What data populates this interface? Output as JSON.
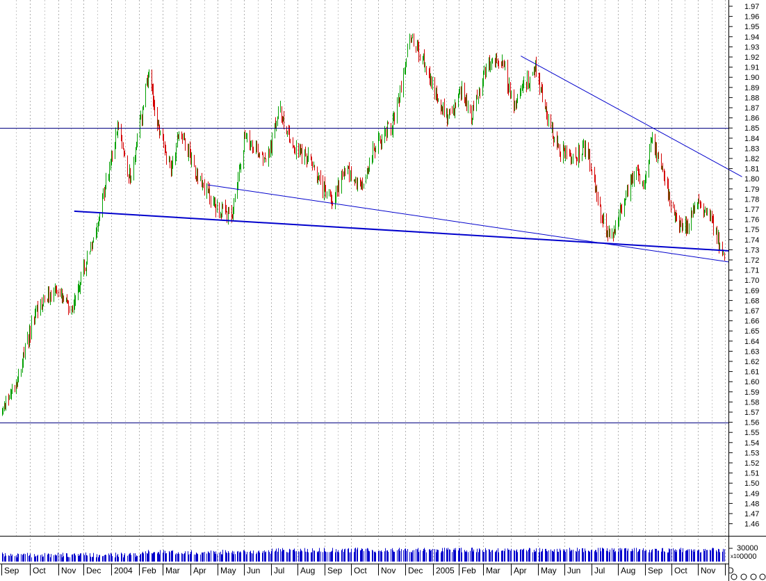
{
  "chart_data": {
    "type": "candlestick",
    "title": "",
    "xlabel": "",
    "ylabel": "",
    "ylim": [
      1.45,
      1.975
    ],
    "grid": "vertical dotted gridlines",
    "x_ticks": [
      "Sep",
      "Oct",
      "Nov",
      "Dec",
      "2004",
      "Feb",
      "Mar",
      "Apr",
      "May",
      "Jun",
      "Jul",
      "Aug",
      "Sep",
      "Oct",
      "Nov",
      "Dec",
      "2005",
      "Feb",
      "Mar",
      "Apr",
      "May",
      "Jun",
      "Jul",
      "Aug",
      "Sep",
      "Oct",
      "Nov",
      "D"
    ],
    "y_ticks": [
      "1.46",
      "1.47",
      "1.48",
      "1.49",
      "1.50",
      "1.51",
      "1.52",
      "1.53",
      "1.54",
      "1.55",
      "1.56",
      "1.57",
      "1.58",
      "1.59",
      "1.60",
      "1.61",
      "1.62",
      "1.63",
      "1.64",
      "1.65",
      "1.66",
      "1.67",
      "1.68",
      "1.69",
      "1.70",
      "1.71",
      "1.72",
      "1.73",
      "1.74",
      "1.75",
      "1.76",
      "1.77",
      "1.78",
      "1.79",
      "1.80",
      "1.81",
      "1.82",
      "1.83",
      "1.84",
      "1.85",
      "1.86",
      "1.87",
      "1.88",
      "1.89",
      "1.90",
      "1.91",
      "1.92",
      "1.93",
      "1.94",
      "1.95",
      "1.96",
      "1.97"
    ],
    "price_path": [
      {
        "date": "2003-09-01",
        "price": 1.57
      },
      {
        "date": "2003-09-20",
        "price": 1.61
      },
      {
        "date": "2003-10-08",
        "price": 1.67
      },
      {
        "date": "2003-10-28",
        "price": 1.69
      },
      {
        "date": "2003-11-15",
        "price": 1.67
      },
      {
        "date": "2003-12-01",
        "price": 1.71
      },
      {
        "date": "2003-12-20",
        "price": 1.77
      },
      {
        "date": "2004-01-08",
        "price": 1.85
      },
      {
        "date": "2004-01-22",
        "price": 1.8
      },
      {
        "date": "2004-02-12",
        "price": 1.9
      },
      {
        "date": "2004-02-25",
        "price": 1.85
      },
      {
        "date": "2004-03-10",
        "price": 1.81
      },
      {
        "date": "2004-03-20",
        "price": 1.85
      },
      {
        "date": "2004-04-10",
        "price": 1.8
      },
      {
        "date": "2004-05-01",
        "price": 1.77
      },
      {
        "date": "2004-05-17",
        "price": 1.76
      },
      {
        "date": "2004-06-01",
        "price": 1.84
      },
      {
        "date": "2004-06-28",
        "price": 1.82
      },
      {
        "date": "2004-07-10",
        "price": 1.87
      },
      {
        "date": "2004-07-28",
        "price": 1.83
      },
      {
        "date": "2004-08-15",
        "price": 1.82
      },
      {
        "date": "2004-08-30",
        "price": 1.79
      },
      {
        "date": "2004-09-10",
        "price": 1.78
      },
      {
        "date": "2004-09-25",
        "price": 1.81
      },
      {
        "date": "2004-10-12",
        "price": 1.79
      },
      {
        "date": "2004-10-28",
        "price": 1.83
      },
      {
        "date": "2004-11-20",
        "price": 1.86
      },
      {
        "date": "2004-12-05",
        "price": 1.94
      },
      {
        "date": "2004-12-25",
        "price": 1.91
      },
      {
        "date": "2005-01-10",
        "price": 1.87
      },
      {
        "date": "2005-01-22",
        "price": 1.86
      },
      {
        "date": "2005-02-05",
        "price": 1.89
      },
      {
        "date": "2005-02-15",
        "price": 1.86
      },
      {
        "date": "2005-03-05",
        "price": 1.91
      },
      {
        "date": "2005-03-20",
        "price": 1.92
      },
      {
        "date": "2005-04-05",
        "price": 1.87
      },
      {
        "date": "2005-04-15",
        "price": 1.89
      },
      {
        "date": "2005-04-28",
        "price": 1.91
      },
      {
        "date": "2005-05-12",
        "price": 1.86
      },
      {
        "date": "2005-05-25",
        "price": 1.83
      },
      {
        "date": "2005-06-10",
        "price": 1.82
      },
      {
        "date": "2005-06-25",
        "price": 1.83
      },
      {
        "date": "2005-07-10",
        "price": 1.77
      },
      {
        "date": "2005-07-22",
        "price": 1.74
      },
      {
        "date": "2005-08-05",
        "price": 1.77
      },
      {
        "date": "2005-08-20",
        "price": 1.81
      },
      {
        "date": "2005-08-31",
        "price": 1.79
      },
      {
        "date": "2005-09-08",
        "price": 1.84
      },
      {
        "date": "2005-09-20",
        "price": 1.81
      },
      {
        "date": "2005-10-05",
        "price": 1.76
      },
      {
        "date": "2005-10-18",
        "price": 1.75
      },
      {
        "date": "2005-11-01",
        "price": 1.78
      },
      {
        "date": "2005-11-15",
        "price": 1.76
      },
      {
        "date": "2005-11-30",
        "price": 1.72
      }
    ],
    "reference_lines": [
      {
        "kind": "horizontal",
        "price": 1.85
      },
      {
        "kind": "horizontal",
        "price": 1.56
      },
      {
        "kind": "trendline",
        "from": {
          "date": "2003-11-20",
          "price": 1.768
        },
        "to": {
          "date": "2005-12-05",
          "price": 1.729
        }
      },
      {
        "kind": "trendline",
        "from": {
          "date": "2004-04-20",
          "price": 1.794
        },
        "to": {
          "date": "2005-12-05",
          "price": 1.718
        }
      },
      {
        "kind": "trendline",
        "from": {
          "date": "2005-04-12",
          "price": 1.921
        },
        "to": {
          "date": "2005-12-20",
          "price": 1.802
        }
      }
    ],
    "volume_axis": {
      "tick_label": "30000",
      "multiplier_label": "x10",
      "tick2_label": "0000"
    }
  }
}
